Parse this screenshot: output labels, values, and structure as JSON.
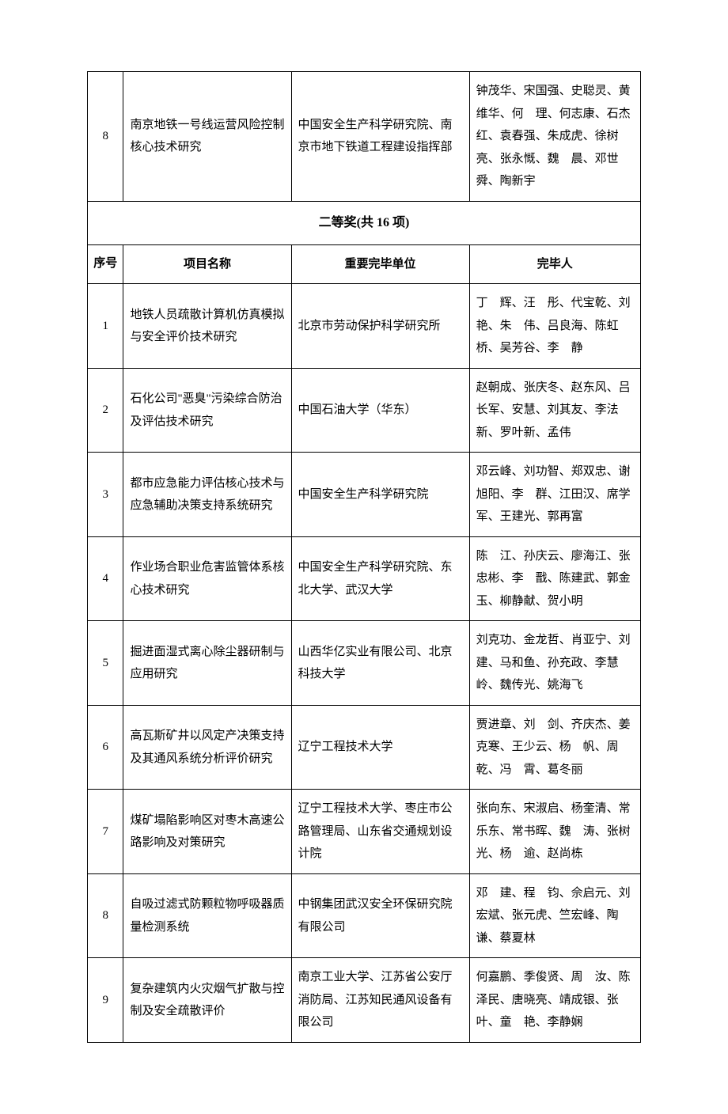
{
  "topRow": {
    "num": "8",
    "name": "南京地铁一号线运营风险控制核心技术研究",
    "org": "中国安全生产科学研究院、南京市地下铁道工程建设指挥部",
    "people": "钟茂华、宋国强、史聪灵、黄维华、何　理、何志康、石杰红、袁春强、朱成虎、徐树亮、张永慨、魏　晨、邓世舜、陶新宇"
  },
  "sectionTitle": "二等奖(共 16 项)",
  "headers": {
    "seq": "序号",
    "name": "项目名称",
    "org": "重要完毕单位",
    "people": "完毕人"
  },
  "rows": [
    {
      "num": "1",
      "name": "地铁人员疏散计算机仿真模拟与安全评价技术研究",
      "org": "北京市劳动保护科学研究所",
      "people": "丁　辉、汪　彤、代宝乾、刘　艳、朱　伟、吕良海、陈虹桥、吴芳谷、李　静"
    },
    {
      "num": "2",
      "name": "石化公司\"恶臭\"污染综合防治及评估技术研究",
      "org": "中国石油大学（华东）",
      "people": "赵朝成、张庆冬、赵东风、吕长军、安慧、刘其友、李法新、罗叶新、孟伟"
    },
    {
      "num": "3",
      "name": "都市应急能力评估核心技术与应急辅助决策支持系统研究",
      "org": "中国安全生产科学研究院",
      "people": "邓云峰、刘功智、郑双忠、谢旭阳、李　群、江田汉、席学军、王建光、郭再富"
    },
    {
      "num": "4",
      "name": "作业场合职业危害监管体系核心技术研究",
      "org": "中国安全生产科学研究院、东北大学、武汉大学",
      "people": "陈　江、孙庆云、廖海江、张忠彬、李　戬、陈建武、郭金玉、柳静献、贺小明"
    },
    {
      "num": "5",
      "name": "掘进面湿式离心除尘器研制与应用研究",
      "org": "山西华亿实业有限公司、北京科技大学",
      "people": "刘克功、金龙哲、肖亚宁、刘　建、马和鱼、孙充政、李慧岭、魏传光、姚海飞"
    },
    {
      "num": "6",
      "name": "高瓦斯矿井以风定产决策支持及其通风系统分析评价研究",
      "org": "辽宁工程技术大学",
      "people": "贾进章、刘　剑、齐庆杰、姜克寒、王少云、杨　帆、周　乾、冯　霄、葛冬丽"
    },
    {
      "num": "7",
      "name": "煤矿塌陷影响区对枣木高速公路影响及对策研究",
      "org": "辽宁工程技术大学、枣庄市公路管理局、山东省交通规划设计院",
      "people": "张向东、宋淑启、杨奎清、常乐东、常书晖、魏　涛、张树光、杨　逾、赵尚栋"
    },
    {
      "num": "8",
      "name": "自吸过滤式防颗粒物呼吸器质量检测系统",
      "org": "中钢集团武汉安全环保研究院有限公司",
      "people": "邓　建、程　钧、佘启元、刘宏斌、张元虎、竺宏峰、陶　谦、蔡夏林"
    },
    {
      "num": "9",
      "name": "复杂建筑内火灾烟气扩散与控制及安全疏散评价",
      "org": "南京工业大学、江苏省公安厅消防局、江苏知民通风设备有限公司",
      "people": "何嘉鹏、季俊贤、周　汝、陈泽民、唐晓亮、靖成银、张　叶、童　艳、李静娴"
    }
  ]
}
